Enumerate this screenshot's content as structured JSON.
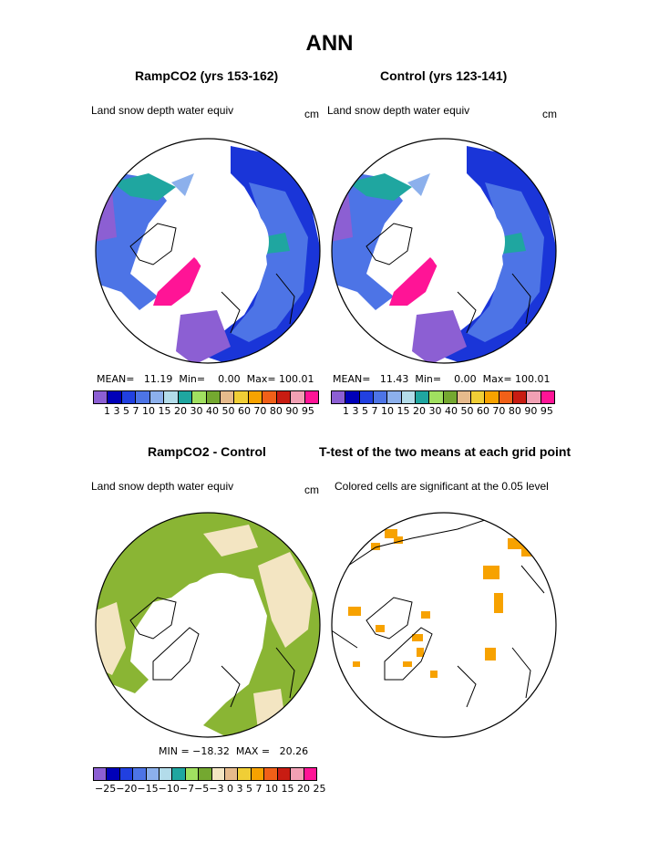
{
  "figure": {
    "title": "ANN"
  },
  "panels": {
    "p1": {
      "title": "RampCO2 (yrs 153-162)",
      "label": "Land snow depth water equiv",
      "units": "cm",
      "stats": "MEAN=   11.19  Min=    0.00  Max= 100.01"
    },
    "p2": {
      "title": "Control (yrs 123-141)",
      "label": "Land snow depth water equiv",
      "units": "cm",
      "stats": "MEAN=   11.43  Min=    0.00  Max= 100.01"
    },
    "p3": {
      "title": "RampCO2 - Control",
      "label": "Land snow depth water equiv",
      "units": "cm",
      "stats": "MIN = −18.32  MAX =   20.26"
    },
    "p4": {
      "title": "T-test of the two means at each grid point",
      "label": "Colored cells are significant at the 0.05 level"
    }
  },
  "colorbars": {
    "abs": {
      "colors": [
        "#8c5fd3",
        "#0000b8",
        "#2140e0",
        "#4d74e6",
        "#8cb0ec",
        "#b3dcea",
        "#1fa6a0",
        "#a0e060",
        "#74a830",
        "#e6ba8c",
        "#f0ce36",
        "#f7a200",
        "#f06018",
        "#c81c12",
        "#f2a0b4",
        "#ff1496"
      ],
      "labels": [
        "1",
        "3",
        "5",
        "7",
        "10",
        "15",
        "20",
        "30",
        "40",
        "50",
        "60",
        "70",
        "80",
        "90",
        "95"
      ],
      "tick_text": "1 3 5 7 10 15 20 30 40 50 60 70 80 90 95"
    },
    "diff": {
      "colors": [
        "#8c5fd3",
        "#0000b8",
        "#2140e0",
        "#4d74e6",
        "#8cb0ec",
        "#b3dcea",
        "#1fa6a0",
        "#a0e060",
        "#74a830",
        "#f3e5c2",
        "#e6ba8c",
        "#f0ce36",
        "#f7a200",
        "#f06018",
        "#c81c12",
        "#f2a0b4",
        "#ff1496"
      ],
      "labels": [
        "−25",
        "−20",
        "−15",
        "−10",
        "−7",
        "−5",
        "−3",
        "0",
        "3",
        "5",
        "7",
        "10",
        "15",
        "20",
        "25"
      ],
      "tick_text": "−25−20−15−10−7−5−3 0  3  5  7 10 15 20 25"
    }
  },
  "map_colors": {
    "land_green": "#8ab534",
    "land_tan": "#f3e5c2",
    "sig_orange": "#f7a200",
    "ice_magenta": "#ff1496",
    "snow_blue": "#4d74e6",
    "snow_dark": "#1a35d8",
    "snow_purple": "#8c5fd3",
    "snow_teal": "#1fa6a0",
    "snow_light": "#8cb0ec"
  }
}
